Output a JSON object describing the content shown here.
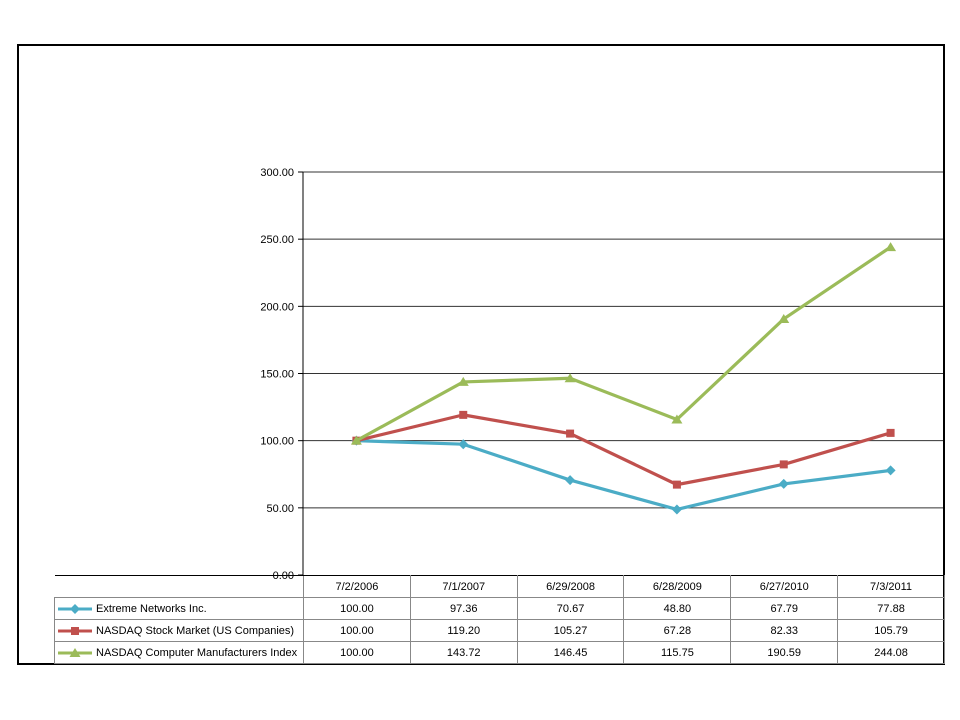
{
  "chart_data": {
    "type": "line",
    "categories": [
      "7/2/2006",
      "7/1/2007",
      "6/29/2008",
      "6/28/2009",
      "6/27/2010",
      "7/3/2011"
    ],
    "series": [
      {
        "name": "Extreme Networks Inc.",
        "marker": "diamond",
        "color": "#4BACC6",
        "values": [
          100.0,
          97.36,
          70.67,
          48.8,
          67.79,
          77.88
        ]
      },
      {
        "name": "NASDAQ Stock Market (US Companies)",
        "marker": "square",
        "color": "#C0504D",
        "values": [
          100.0,
          119.2,
          105.27,
          67.28,
          82.33,
          105.79
        ]
      },
      {
        "name": "NASDAQ Computer Manufacturers Index",
        "marker": "triangle",
        "color": "#9BBB59",
        "values": [
          100.0,
          143.72,
          146.45,
          115.75,
          190.59,
          244.08
        ]
      }
    ],
    "title": "",
    "xlabel": "",
    "ylabel": "",
    "ylim": [
      0,
      300
    ],
    "ytick_step": 50,
    "ytick_labels": [
      "0.00",
      "50.00",
      "100.00",
      "150.00",
      "200.00",
      "250.00",
      "300.00"
    ],
    "grid": true,
    "legend_position": "table-left",
    "value_decimals": 2
  },
  "colors": {
    "axis": "#000000",
    "gridline": "#333333",
    "table_border": "#888888",
    "background": "#ffffff",
    "frame_border": "#000000"
  }
}
